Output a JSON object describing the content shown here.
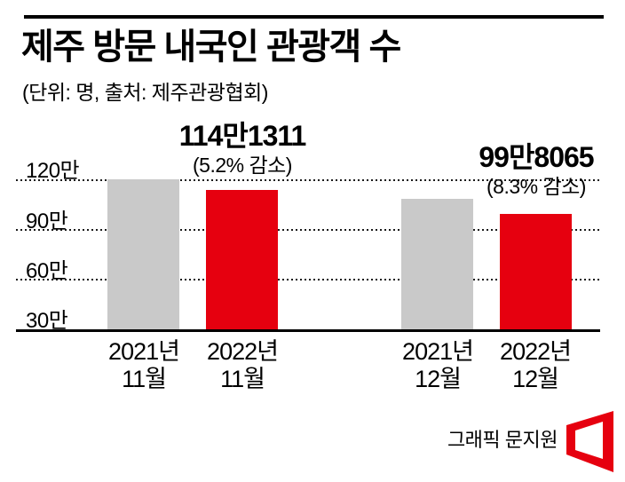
{
  "header": {
    "title": "제주 방문 내국인 관광객 수",
    "subtitle": "(단위: 명, 출처: 제주관광협회)"
  },
  "colors": {
    "red": "#e6000f",
    "gray": "#c9c9c9",
    "line": "#000000"
  },
  "credit": {
    "text": "그래픽 문지원"
  },
  "chart_data": {
    "type": "bar",
    "title": "제주 방문 내국인 관광객 수",
    "unit": "명",
    "source": "제주관광협회",
    "ytick_labels": [
      "120만",
      "90만",
      "60만",
      "30만"
    ],
    "y_axis_note": "axis truncated: solid baseline represents 30만, gridlines every 30만 up to 120만",
    "ylim_man": [
      30,
      125
    ],
    "grid": "dotted horizontal",
    "bars": [
      {
        "category_line1": "2021년",
        "category_line2": "11월",
        "value_man": 120.4,
        "value_estimated": true,
        "color": "gray"
      },
      {
        "category_line1": "2022년",
        "category_line2": "11월",
        "value_man": 114.1311,
        "value": 1141311,
        "label": "114만1311",
        "sublabel": "(5.2% 감소)",
        "color": "red"
      },
      {
        "category_line1": "2021년",
        "category_line2": "12월",
        "value_man": 108.8,
        "value_estimated": true,
        "color": "gray"
      },
      {
        "category_line1": "2022년",
        "category_line2": "12월",
        "value_man": 99.8065,
        "value": 998065,
        "label": "99만8065",
        "sublabel": "(8.3% 감소)",
        "color": "red"
      }
    ]
  }
}
